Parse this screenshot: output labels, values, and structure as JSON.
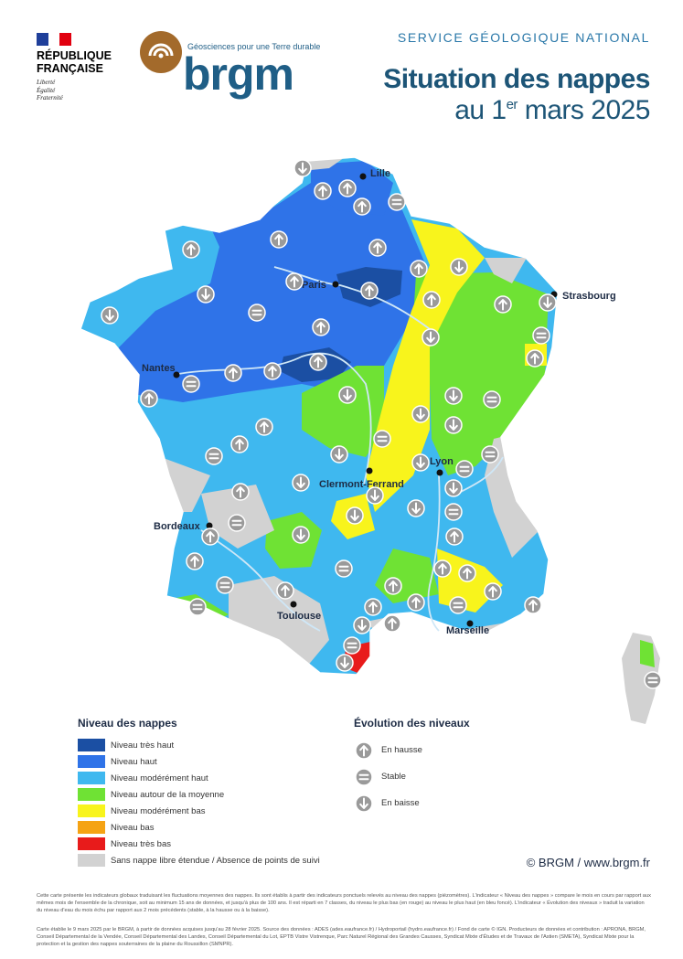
{
  "header": {
    "rf_lines": [
      "RÉPUBLIQUE",
      "FRANÇAISE"
    ],
    "rf_motto": [
      "Liberté",
      "Égalité",
      "Fraternité"
    ],
    "brgm_tagline": "Géosciences pour une Terre durable",
    "brgm_word": "brgm",
    "service": "SERVICE GÉOLOGIQUE NATIONAL",
    "title_line1": "Situation des nappes",
    "title_line2_pre": "au 1",
    "title_line2_sup": "er",
    "title_line2_post": " mars 2025"
  },
  "colors": {
    "tres_haut": "#1b4fa3",
    "haut": "#2f73e8",
    "moderement_haut": "#3fb8ef",
    "autour_moyenne": "#6fe234",
    "moderement_bas": "#f8f41c",
    "bas": "#f5a314",
    "tres_bas": "#e81b1b",
    "absence": "#d2d2d2",
    "arrow_icon": "#9a9a9a"
  },
  "cities": [
    "Lille",
    "Paris",
    "Strasbourg",
    "Nantes",
    "Lyon",
    "Clermont-Ferrand",
    "Bordeaux",
    "Toulouse",
    "Marseille"
  ],
  "legend_niveau": {
    "title": "Niveau des nappes",
    "items": [
      {
        "label": "Niveau très haut",
        "color": "#1b4fa3"
      },
      {
        "label": "Niveau haut",
        "color": "#2f73e8"
      },
      {
        "label": "Niveau modérément haut",
        "color": "#3fb8ef"
      },
      {
        "label": "Niveau autour de la moyenne",
        "color": "#6fe234"
      },
      {
        "label": "Niveau modérément bas",
        "color": "#f8f41c"
      },
      {
        "label": "Niveau bas",
        "color": "#f5a314"
      },
      {
        "label": "Niveau très bas",
        "color": "#e81b1b"
      },
      {
        "label": "Sans nappe libre étendue / Absence de points de suivi",
        "color": "#d2d2d2"
      }
    ]
  },
  "legend_evolution": {
    "title": "Évolution des niveaux",
    "items": [
      {
        "label": "En hausse",
        "icon": "arrow-up-icon"
      },
      {
        "label": "Stable",
        "icon": "equals-icon"
      },
      {
        "label": "En baisse",
        "icon": "arrow-down-icon"
      }
    ]
  },
  "copyright": "© BRGM / www.brgm.fr",
  "footer_para1": "Cette carte présente les indicateurs globaux traduisant les fluctuations moyennes des nappes. Ils sont établis à partir des indicateurs ponctuels relevés au niveau des nappes (piézomètres). L'indicateur « Niveau des nappes » compare le mois en cours par rapport aux mêmes mois de l'ensemble de la chronique, soit au minimum 15 ans de données, et jusqu'à plus de 100 ans. Il est réparti en 7 classes, du niveau le plus bas (en rouge) au niveau le plus haut (en bleu foncé). L'indicateur « Évolution des niveaux » traduit la variation du niveau d'eau du mois échu par rapport aux 2 mois précédents (stable, à la hausse ou à la baisse).",
  "footer_para2": "Carte établie le 9 mars 2025 par le BRGM, à partir de données acquises jusqu'au 28 février 2025. Source des données : ADES (ades.eaufrance.fr) / Hydroportail (hydro.eaufrance.fr) / Fond de carte © IGN. Producteurs de données et contribution : APRONA, BRGM, Conseil Départemental de la Vendée, Conseil Départemental des Landes, Conseil Départemental du Lot, EPTB Vistre Vistrenque, Parc Naturel Régional des Grandes Causses, Syndicat Mixte d'Études et de Travaux de l'Astien (SMETA), Syndicat Mixte pour la protection et la gestion des nappes souterraines de la plaine du Roussillon (SMNPR)."
}
